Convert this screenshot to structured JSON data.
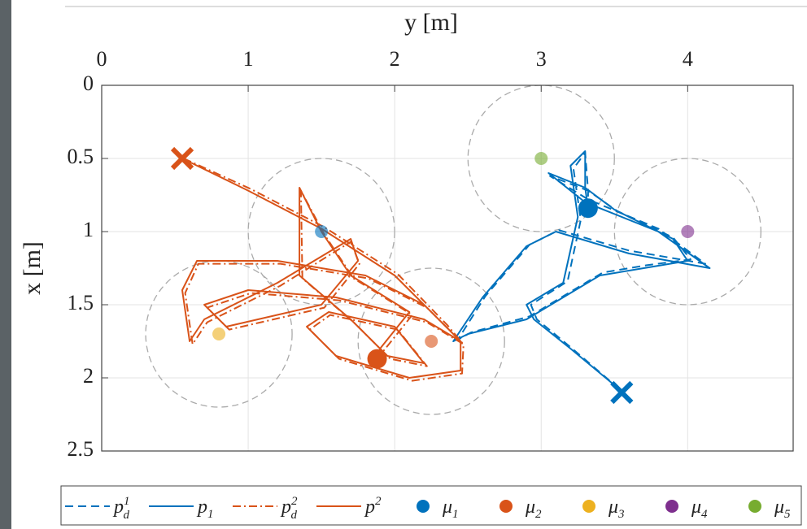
{
  "chart_data": {
    "type": "line",
    "xlabel": "y [m]",
    "ylabel": "x [m]",
    "xlim": [
      0,
      4.72
    ],
    "ylim": [
      0,
      2.5
    ],
    "y_reversed": true,
    "x_axis_position": "top",
    "xticks": [
      0,
      1,
      2,
      3,
      4
    ],
    "yticks": [
      0,
      0.5,
      1,
      1.5,
      2,
      2.5
    ],
    "grid": true,
    "circle_radius": 0.5,
    "legend": "bottom",
    "series": [
      {
        "name": "p",
        "sub": "d",
        "sup": "1",
        "color": "#0072bd",
        "style": "dashed",
        "x": [
          3.53,
          3.48,
          3.2,
          2.97,
          2.93,
          3.18,
          3.27,
          3.22,
          3.3,
          3.32,
          3.06,
          3.32,
          3.8,
          4.12,
          3.6,
          3.12,
          2.92,
          2.62,
          2.43,
          2.52,
          2.92,
          3.42,
          3.72,
          4.02,
          3.9,
          3.52,
          3.32,
          3.32
        ],
        "values": [
          2.08,
          2.03,
          1.79,
          1.6,
          1.5,
          1.34,
          0.92,
          0.57,
          0.46,
          0.72,
          0.62,
          0.78,
          0.98,
          1.22,
          1.13,
          0.99,
          1.09,
          1.44,
          1.74,
          1.69,
          1.58,
          1.28,
          1.23,
          1.19,
          1.04,
          0.86,
          0.72,
          0.84
        ]
      },
      {
        "name": "p",
        "sub": "1",
        "color": "#0072bd",
        "style": "solid",
        "x": [
          3.55,
          3.5,
          3.2,
          2.95,
          2.9,
          3.15,
          3.25,
          3.2,
          3.3,
          3.3,
          3.05,
          3.3,
          3.8,
          4.15,
          3.6,
          3.1,
          2.9,
          2.6,
          2.4,
          2.5,
          2.9,
          3.4,
          3.7,
          4.0,
          3.9,
          3.5,
          3.3,
          3.32
        ],
        "values": [
          2.1,
          2.05,
          1.8,
          1.6,
          1.5,
          1.35,
          0.9,
          0.55,
          0.45,
          0.7,
          0.6,
          0.8,
          1.0,
          1.25,
          1.15,
          1.0,
          1.1,
          1.45,
          1.75,
          1.7,
          1.6,
          1.3,
          1.25,
          1.2,
          1.05,
          0.85,
          0.7,
          0.84
        ]
      },
      {
        "name": "p",
        "sub": "d",
        "sup": "2",
        "color": "#d95319",
        "style": "dashdot",
        "x": [
          0.56,
          1.02,
          1.52,
          2.02,
          2.36,
          2.46,
          2.22,
          1.82,
          1.22,
          0.66,
          0.57,
          0.62,
          0.72,
          1.22,
          1.7,
          1.76,
          1.52,
          0.87,
          0.72,
          1.02,
          1.62,
          2.22,
          2.47,
          2.46,
          2.12,
          1.62,
          1.42,
          1.56,
          2.02,
          2.22,
          1.97,
          1.72,
          1.37,
          1.36,
          1.52,
          1.72,
          2.12,
          1.92,
          1.88
        ],
        "values": [
          0.5,
          0.71,
          0.97,
          1.29,
          1.64,
          1.76,
          1.52,
          1.32,
          1.22,
          1.22,
          1.42,
          1.77,
          1.62,
          1.37,
          1.07,
          1.22,
          1.52,
          1.67,
          1.52,
          1.42,
          1.47,
          1.62,
          1.77,
          1.97,
          2.02,
          1.87,
          1.67,
          1.57,
          1.67,
          1.92,
          1.87,
          1.62,
          1.32,
          0.72,
          1.02,
          1.32,
          1.57,
          1.82,
          1.87
        ]
      },
      {
        "name": "p",
        "sup": "2",
        "color": "#d95319",
        "style": "solid",
        "x": [
          0.55,
          1.0,
          1.5,
          2.0,
          2.35,
          2.45,
          2.2,
          1.8,
          1.2,
          0.65,
          0.55,
          0.6,
          0.7,
          1.2,
          1.7,
          1.75,
          1.5,
          0.85,
          0.7,
          1.0,
          1.6,
          2.2,
          2.45,
          2.45,
          2.1,
          1.6,
          1.4,
          1.55,
          2.0,
          2.2,
          1.95,
          1.7,
          1.35,
          1.35,
          1.5,
          1.7,
          2.1,
          1.9,
          1.88
        ],
        "values": [
          0.5,
          0.72,
          0.98,
          1.3,
          1.65,
          1.75,
          1.5,
          1.3,
          1.2,
          1.2,
          1.4,
          1.75,
          1.6,
          1.35,
          1.05,
          1.2,
          1.5,
          1.65,
          1.5,
          1.4,
          1.45,
          1.6,
          1.75,
          1.95,
          2.0,
          1.85,
          1.65,
          1.55,
          1.65,
          1.9,
          1.85,
          1.6,
          1.3,
          0.7,
          1.0,
          1.3,
          1.55,
          1.8,
          1.87
        ]
      },
      {
        "type": "scatter",
        "name": "μ",
        "sub": "1",
        "color": "#0072bd",
        "x": [
          1.5
        ],
        "values": [
          1.0
        ]
      },
      {
        "type": "scatter",
        "name": "μ",
        "sub": "2",
        "color": "#d95319",
        "x": [
          2.25
        ],
        "values": [
          1.75
        ]
      },
      {
        "type": "scatter",
        "name": "μ",
        "sub": "3",
        "color": "#edb120",
        "x": [
          0.8
        ],
        "values": [
          1.7
        ]
      },
      {
        "type": "scatter",
        "name": "μ",
        "sub": "4",
        "color": "#7e2f8e",
        "x": [
          4.0
        ],
        "values": [
          1.0
        ]
      },
      {
        "type": "scatter",
        "name": "μ",
        "sub": "5",
        "color": "#77ac30",
        "x": [
          3.0
        ],
        "values": [
          0.5
        ]
      }
    ]
  }
}
